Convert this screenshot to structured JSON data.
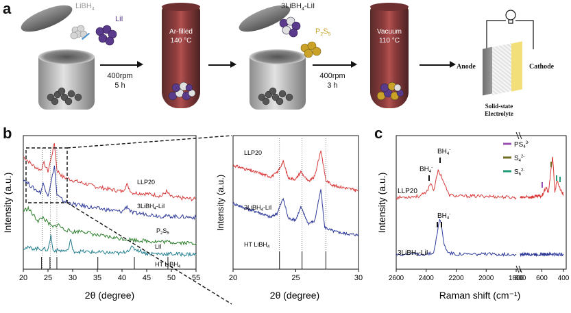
{
  "panel_a": {
    "letter": "a",
    "reagents1": [
      "LiBH",
      "4"
    ],
    "reagent_lii": "LiI",
    "step1": [
      "400rpm",
      "5 h"
    ],
    "vessel1": [
      "Ar-filled",
      "140 °C"
    ],
    "reagent_mix": [
      "3LiBH",
      "4",
      "-LiI"
    ],
    "reagent_p2s5": [
      "P",
      "2",
      "S",
      "5"
    ],
    "step2": [
      "400rpm",
      "3 h"
    ],
    "vessel2": [
      "Vacuum",
      "110 °C"
    ],
    "battery": {
      "anode": "Anode",
      "cathode": "Cathode",
      "electrolyte": [
        "Solid-state",
        "Electrolyte"
      ]
    },
    "colors": {
      "libh4": "#c8c8c8",
      "lii": "#5a3a8a",
      "p2s5": "#c9a227",
      "tube": "#8e3c3c",
      "cathode": "#f3df7a"
    }
  },
  "panel_b": {
    "letter": "b",
    "chart_data": [
      {
        "type": "line",
        "xlabel": "2θ (degree)",
        "ylabel": "Intensity (a.u.)",
        "xlim": [
          20,
          55
        ],
        "xticks": [
          20,
          25,
          30,
          35,
          40,
          45,
          50,
          55
        ],
        "series": [
          {
            "name": "LLP20",
            "color": "#d83a3a",
            "x": [
              20,
              22,
              23.5,
              24.2,
              25,
              25.5,
              26.3,
              26.8,
              28,
              30,
              35,
              40,
              41,
              42,
              45,
              48,
              49,
              50,
              55
            ],
            "y": [
              10,
              9.2,
              8.8,
              9.4,
              8.7,
              9.6,
              11.2,
              8.8,
              8.2,
              7.9,
              7.3,
              6.9,
              7.5,
              6.8,
              6.7,
              6.5,
              6.9,
              6.4,
              6.2
            ]
          },
          {
            "name": "3LiBH4-LiI",
            "color": "#2e3a9a",
            "x": [
              20,
              22,
              23.5,
              24,
              25,
              25.5,
              26.3,
              26.8,
              28,
              30,
              35,
              40,
              41,
              42,
              45,
              48,
              50,
              55
            ],
            "y": [
              8,
              7.2,
              6.8,
              7.6,
              6.6,
              7.4,
              9.2,
              6.6,
              6.1,
              5.8,
              5.4,
              5.1,
              5.6,
              5,
              4.9,
              4.7,
              4.7,
              4.6
            ]
          },
          {
            "name": "P2S5",
            "color": "#2a7d2a",
            "x": [
              20,
              21,
              22,
              23,
              24,
              25,
              26,
              27,
              28,
              30,
              32,
              35,
              40,
              45,
              50,
              55
            ],
            "y": [
              5.2,
              5.4,
              4.8,
              4.3,
              4.6,
              4.1,
              3.7,
              4,
              3.6,
              3.3,
              3.4,
              3,
              2.7,
              2.5,
              2.4,
              2.3
            ]
          },
          {
            "name": "LiI",
            "color": "#1f7c8c",
            "x": [
              20,
              24,
              25,
              25.6,
              26,
              29,
              29.6,
              30,
              35,
              40,
              42,
              45,
              55
            ],
            "y": [
              1.9,
              1.8,
              1.7,
              3,
              1.7,
              1.6,
              2.7,
              1.6,
              1.5,
              1.4,
              1.9,
              1.4,
              1.3
            ]
          }
        ],
        "reference_label": "HT LiBH4",
        "reference_sticks": [
          23.7,
          25.4,
          26.8,
          35.1,
          42.5,
          49.3
        ]
      },
      {
        "type": "line",
        "xlabel": "2θ (degree)",
        "ylabel": "Intensity (a.u.)",
        "xlim": [
          20,
          30
        ],
        "xticks": [
          20,
          25,
          30
        ],
        "series": [
          {
            "name": "LLP20",
            "color": "#d83a3a",
            "x": [
              20,
              21,
              22,
              23,
              23.5,
              24,
              24.4,
              25,
              25.4,
              26,
              26.5,
              27,
              27.4,
              28,
              29,
              30
            ],
            "y": [
              8.2,
              7.9,
              7.6,
              7.3,
              7.6,
              8.5,
              7.2,
              7.1,
              7.7,
              6.9,
              7.3,
              9.4,
              7,
              6.6,
              6.4,
              6.2
            ]
          },
          {
            "name": "3LiBH4-LiI",
            "color": "#2e3a9a",
            "x": [
              20,
              21,
              22,
              23,
              23.5,
              24,
              24.4,
              25,
              25.4,
              26,
              26.5,
              27,
              27.3,
              28,
              29,
              30
            ],
            "y": [
              5.2,
              4.8,
              4.5,
              4.1,
              4.4,
              5.6,
              4,
              3.9,
              4.9,
              3.6,
              3.8,
              6.3,
              3.3,
              3,
              2.8,
              2.7
            ]
          }
        ],
        "reference_label": "HT LiBH4",
        "reference_sticks": [
          23.7,
          25.5,
          27.4
        ]
      }
    ]
  },
  "panel_c": {
    "letter": "c",
    "chart_data": {
      "type": "line",
      "xlabel": "Raman shift (cm⁻¹)",
      "ylabel": "Intensity (a.u.)",
      "xticks": [
        "2600",
        "2400",
        "2200",
        "2000",
        "1800",
        "800",
        "600",
        "400"
      ],
      "series": [
        {
          "name": "LLP20",
          "color": "#d83a3a",
          "x": [
            2600,
            2450,
            2400,
            2370,
            2350,
            2320,
            2300,
            2250,
            2200,
            2000,
            1800,
            800,
            600,
            560,
            540,
            500,
            480,
            460,
            430,
            400
          ],
          "y": [
            4.8,
            4.9,
            5.1,
            5.8,
            5.3,
            6.6,
            6.3,
            5,
            4.9,
            4.9,
            4.8,
            4.8,
            4.9,
            5.5,
            5.1,
            7.6,
            5.2,
            5.9,
            5.4,
            5
          ]
        },
        {
          "name": "3LiBH4-LiI",
          "color": "#2e3a9a",
          "x": [
            2600,
            2400,
            2350,
            2320,
            2310,
            2300,
            2280,
            2250,
            2200,
            2000,
            1800,
            800,
            600,
            400
          ],
          "y": [
            1,
            1,
            1.1,
            2.8,
            3.3,
            3.1,
            1.6,
            1.1,
            1,
            1,
            1,
            1,
            1,
            1
          ]
        }
      ],
      "peak_labels": [
        "BH4-",
        "BH4-",
        "BH4-"
      ],
      "legend": [
        {
          "label": "PS43-",
          "color": "#9b4fb0"
        },
        {
          "label": "S42-",
          "color": "#6e6e1e"
        },
        {
          "label": "S62-",
          "color": "#1f9b7a"
        }
      ]
    }
  }
}
